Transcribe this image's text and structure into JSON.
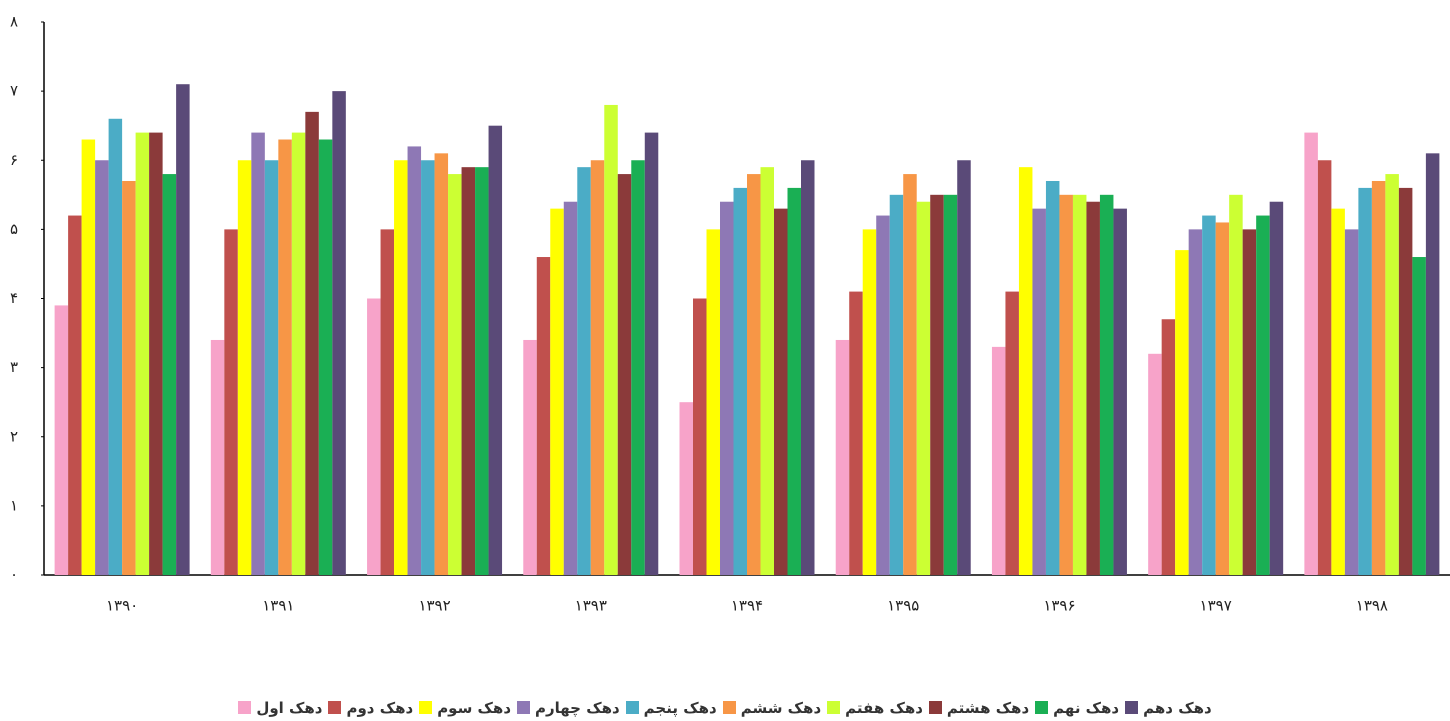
{
  "chart_data": {
    "type": "bar",
    "categories": [
      "۱۳۹۰",
      "۱۳۹۱",
      "۱۳۹۲",
      "۱۳۹۳",
      "۱۳۹۴",
      "۱۳۹۵",
      "۱۳۹۶",
      "۱۳۹۷",
      "۱۳۹۸"
    ],
    "series": [
      {
        "name": "دهک اول",
        "color": "#f7a3c9",
        "values": [
          3.9,
          3.4,
          4.0,
          3.4,
          2.5,
          3.4,
          3.3,
          3.2,
          6.4
        ]
      },
      {
        "name": "دهک دوم",
        "color": "#c0504d",
        "values": [
          5.2,
          5.0,
          5.0,
          4.6,
          4.0,
          4.1,
          4.1,
          3.7,
          6.0
        ]
      },
      {
        "name": "دهک سوم",
        "color": "#ffff00",
        "values": [
          6.3,
          6.0,
          6.0,
          5.3,
          5.0,
          5.0,
          5.9,
          4.7,
          5.3
        ]
      },
      {
        "name": "دهک چهارم",
        "color": "#8e78b5",
        "values": [
          6.0,
          6.4,
          6.2,
          5.4,
          5.4,
          5.2,
          5.3,
          5.0,
          5.0
        ]
      },
      {
        "name": "دهک پنجم",
        "color": "#4bacc6",
        "values": [
          6.6,
          6.0,
          6.0,
          5.9,
          5.6,
          5.5,
          5.7,
          5.2,
          5.6
        ]
      },
      {
        "name": "دهک ششم",
        "color": "#f79646",
        "values": [
          5.7,
          6.3,
          6.1,
          6.0,
          5.8,
          5.8,
          5.5,
          5.1,
          5.7
        ]
      },
      {
        "name": "دهک هفتم",
        "color": "#ccff33",
        "values": [
          6.4,
          6.4,
          5.8,
          6.8,
          5.9,
          5.4,
          5.5,
          5.5,
          5.8
        ]
      },
      {
        "name": "دهک هشتم",
        "color": "#8b3a3a",
        "values": [
          6.4,
          6.7,
          5.9,
          5.8,
          5.3,
          5.5,
          5.4,
          5.0,
          5.6
        ]
      },
      {
        "name": "دهک نهم",
        "color": "#1aaf54",
        "values": [
          5.8,
          6.3,
          5.9,
          6.0,
          5.6,
          5.5,
          5.5,
          5.2,
          4.6
        ]
      },
      {
        "name": "دهک دهم",
        "color": "#5a4a78",
        "values": [
          7.1,
          7.0,
          6.5,
          6.4,
          6.0,
          6.0,
          5.3,
          5.4,
          6.1
        ]
      }
    ],
    "ylim": [
      0,
      8
    ],
    "yticks": [
      {
        "value": 0,
        "label": "۰"
      },
      {
        "value": 1,
        "label": "۱"
      },
      {
        "value": 2,
        "label": "۲"
      },
      {
        "value": 3,
        "label": "۳"
      },
      {
        "value": 4,
        "label": "۴"
      },
      {
        "value": 5,
        "label": "۵"
      },
      {
        "value": 6,
        "label": "۶"
      },
      {
        "value": 7,
        "label": "۷"
      },
      {
        "value": 8,
        "label": "۸"
      }
    ],
    "grid": false,
    "legend": "bottom"
  }
}
